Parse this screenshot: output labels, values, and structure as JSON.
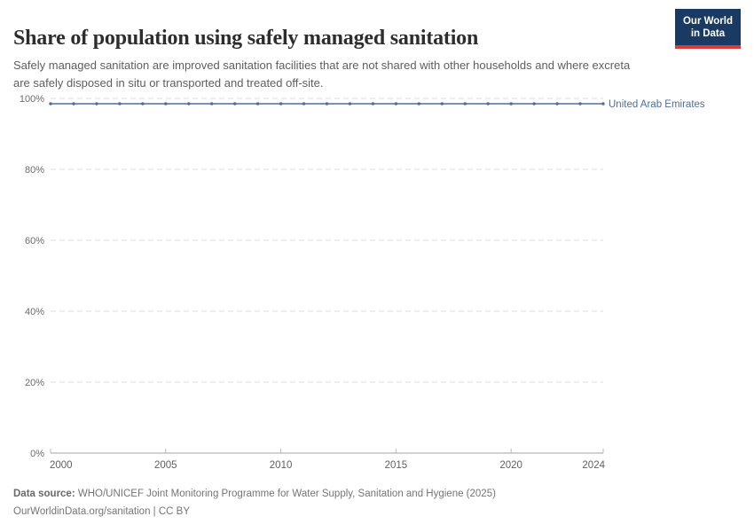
{
  "header": {
    "title": "Share of population using safely managed sanitation",
    "subtitle": "Safely managed sanitation are improved sanitation facilities that are not shared with other households and where excreta are safely disposed in situ or transported and treated off-site."
  },
  "logo": {
    "line1": "Our World",
    "line2": "in Data",
    "bg_color": "#1a3a63",
    "accent_color": "#dc3a34"
  },
  "chart_data": {
    "type": "line",
    "title": "Share of population using safely managed sanitation",
    "x": [
      2000,
      2001,
      2002,
      2003,
      2004,
      2005,
      2006,
      2007,
      2008,
      2009,
      2010,
      2011,
      2012,
      2013,
      2014,
      2015,
      2016,
      2017,
      2018,
      2019,
      2020,
      2021,
      2022,
      2023,
      2024
    ],
    "series": [
      {
        "name": "United Arab Emirates",
        "color": "#4d6e9e",
        "values": [
          98.5,
          98.5,
          98.5,
          98.5,
          98.5,
          98.5,
          98.5,
          98.5,
          98.5,
          98.5,
          98.5,
          98.5,
          98.5,
          98.5,
          98.5,
          98.5,
          98.5,
          98.5,
          98.5,
          98.5,
          98.5,
          98.5,
          98.5,
          98.5,
          98.5
        ]
      }
    ],
    "ylim": [
      0,
      100
    ],
    "xlim": [
      2000,
      2024
    ],
    "yticks": [
      {
        "value": 0,
        "label": "0%"
      },
      {
        "value": 20,
        "label": "20%"
      },
      {
        "value": 40,
        "label": "40%"
      },
      {
        "value": 60,
        "label": 60,
        "label_text": "60%"
      },
      {
        "value": 80,
        "label": "80%"
      },
      {
        "value": 100,
        "label": "100%"
      }
    ],
    "xticks": [
      {
        "value": 2000,
        "label": "2000"
      },
      {
        "value": 2005,
        "label": "2005"
      },
      {
        "value": 2010,
        "label": "2010"
      },
      {
        "value": 2015,
        "label": "2015"
      },
      {
        "value": 2020,
        "label": "2020"
      },
      {
        "value": 2024,
        "label": "2024"
      }
    ],
    "grid": {
      "horizontal": true,
      "style": "dashed",
      "color": "#dcdcdc"
    },
    "axis_color": "#a3a3a3",
    "legend_position": "end-of-line",
    "xlabel": "",
    "ylabel": ""
  },
  "footer": {
    "datasource_label": "Data source:",
    "datasource_text": " WHO/UNICEF Joint Monitoring Programme for Water Supply, Sanitation and Hygiene (2025)",
    "link_text": "OurWorldinData.org/sanitation | CC BY"
  }
}
